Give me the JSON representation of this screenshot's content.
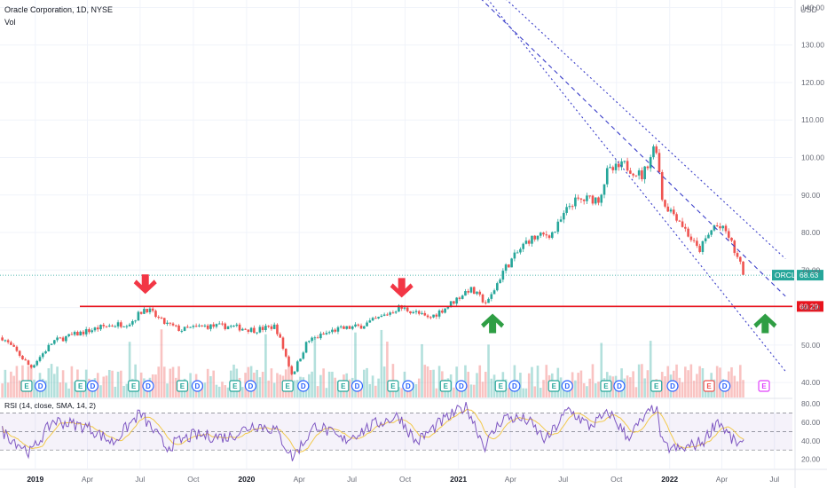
{
  "header": {
    "title": "Oracle Corporation, 1D, NYSE",
    "volume_label": "Vol",
    "currency": "USD"
  },
  "chart_data": {
    "type": "candlestick",
    "symbol": "ORCL",
    "last_price": "68.63",
    "support_price": "60.29",
    "support_level": 60.29,
    "last_level": 68.63,
    "ylim": [
      36,
      142
    ],
    "y_ticks": [
      "40.00",
      "50.00",
      "60.00",
      "70.00",
      "80.00",
      "90.00",
      "100.00",
      "110.00",
      "120.00",
      "130.00",
      "140.00"
    ],
    "y_tick_values": [
      40,
      50,
      60,
      70,
      80,
      90,
      100,
      110,
      120,
      130,
      140
    ],
    "x_ticks": [
      "2019",
      "Apr",
      "Jul",
      "Oct",
      "2020",
      "Apr",
      "Jul",
      "Oct",
      "2021",
      "Apr",
      "Jul",
      "Oct",
      "2022",
      "Apr",
      "Jul"
    ],
    "x_range": [
      "2018-11",
      "2022-08"
    ],
    "price_path": [
      [
        "2018-11-05",
        52
      ],
      [
        "2018-12-01",
        48
      ],
      [
        "2018-12-24",
        44
      ],
      [
        "2019-02-01",
        51
      ],
      [
        "2019-03-15",
        53
      ],
      [
        "2019-05-01",
        55
      ],
      [
        "2019-06-15",
        56
      ],
      [
        "2019-07-10",
        60
      ],
      [
        "2019-08-10",
        56
      ],
      [
        "2019-09-10",
        54
      ],
      [
        "2019-10-15",
        55
      ],
      [
        "2019-12-01",
        55
      ],
      [
        "2020-01-15",
        54
      ],
      [
        "2020-02-20",
        55
      ],
      [
        "2020-03-20",
        42
      ],
      [
        "2020-04-15",
        51
      ],
      [
        "2020-06-01",
        54
      ],
      [
        "2020-07-15",
        55
      ],
      [
        "2020-08-15",
        57
      ],
      [
        "2020-09-20",
        60
      ],
      [
        "2020-10-15",
        59
      ],
      [
        "2020-11-10",
        57
      ],
      [
        "2020-12-10",
        60
      ],
      [
        "2021-01-20",
        65
      ],
      [
        "2021-02-20",
        61
      ],
      [
        "2021-03-20",
        70
      ],
      [
        "2021-05-01",
        78
      ],
      [
        "2021-06-15",
        80
      ],
      [
        "2021-07-15",
        88
      ],
      [
        "2021-08-15",
        89
      ],
      [
        "2021-09-01",
        89
      ],
      [
        "2021-09-15",
        96
      ],
      [
        "2021-10-15",
        98
      ],
      [
        "2021-11-15",
        95
      ],
      [
        "2021-12-08",
        104
      ],
      [
        "2021-12-20",
        88
      ],
      [
        "2022-01-15",
        84
      ],
      [
        "2022-02-20",
        75
      ],
      [
        "2022-03-20",
        82
      ],
      [
        "2022-04-10",
        80
      ],
      [
        "2022-05-01",
        72
      ],
      [
        "2022-05-10",
        68.63
      ]
    ],
    "channel": {
      "upper": [
        [
          "2020-11-20",
          160
        ],
        [
          "2022-07-20",
          73
        ]
      ],
      "middle": [
        [
          "2020-12-20",
          150
        ],
        [
          "2022-07-20",
          63
        ]
      ],
      "lower": [
        [
          "2021-02-01",
          146
        ],
        [
          "2022-07-20",
          43
        ]
      ]
    },
    "annotations": [
      {
        "type": "down-arrow",
        "date": "2019-07-10",
        "price": 66
      },
      {
        "type": "down-arrow",
        "date": "2020-09-25",
        "price": 65
      },
      {
        "type": "up-arrow",
        "date": "2021-03-01",
        "price": 56
      },
      {
        "type": "up-arrow",
        "date": "2022-06-15",
        "price": 56
      }
    ],
    "events": [
      {
        "label": "E",
        "date": "2018-12-17"
      },
      {
        "label": "D",
        "date": "2019-01-10"
      },
      {
        "label": "E",
        "date": "2019-03-20"
      },
      {
        "label": "D",
        "date": "2019-04-10"
      },
      {
        "label": "E",
        "date": "2019-06-20"
      },
      {
        "label": "D",
        "date": "2019-07-15"
      },
      {
        "label": "E",
        "date": "2019-09-12"
      },
      {
        "label": "D",
        "date": "2019-10-08"
      },
      {
        "label": "E",
        "date": "2019-12-12"
      },
      {
        "label": "D",
        "date": "2020-01-08"
      },
      {
        "label": "E",
        "date": "2020-03-12"
      },
      {
        "label": "D",
        "date": "2020-04-08"
      },
      {
        "label": "E",
        "date": "2020-06-16"
      },
      {
        "label": "D",
        "date": "2020-07-10"
      },
      {
        "label": "E",
        "date": "2020-09-10"
      },
      {
        "label": "D",
        "date": "2020-10-06"
      },
      {
        "label": "E",
        "date": "2020-12-10"
      },
      {
        "label": "D",
        "date": "2021-01-06"
      },
      {
        "label": "E",
        "date": "2021-03-15"
      },
      {
        "label": "D",
        "date": "2021-04-08"
      },
      {
        "label": "E",
        "date": "2021-06-15"
      },
      {
        "label": "D",
        "date": "2021-07-08"
      },
      {
        "label": "E",
        "date": "2021-09-13"
      },
      {
        "label": "D",
        "date": "2021-10-06"
      },
      {
        "label": "E",
        "date": "2021-12-09"
      },
      {
        "label": "D",
        "date": "2022-01-06"
      },
      {
        "label": "E",
        "date": "2022-03-10",
        "style": "red"
      },
      {
        "label": "D",
        "date": "2022-04-06"
      },
      {
        "label": "E",
        "date": "2022-06-13",
        "style": "future"
      }
    ],
    "rsi": {
      "label": "RSI (14, close, SMA, 14, 2)",
      "ylim": [
        10,
        85
      ],
      "ticks": [
        "80.00",
        "60.00",
        "40.00",
        "20.00"
      ],
      "tick_values": [
        80,
        60,
        40,
        20
      ],
      "bands": [
        70,
        50,
        30
      ],
      "path": [
        [
          "2018-11-05",
          50
        ],
        [
          "2018-12-24",
          27
        ],
        [
          "2019-02-01",
          62
        ],
        [
          "2019-04-01",
          55
        ],
        [
          "2019-05-15",
          38
        ],
        [
          "2019-07-01",
          70
        ],
        [
          "2019-08-15",
          33
        ],
        [
          "2019-10-01",
          46
        ],
        [
          "2019-12-01",
          44
        ],
        [
          "2020-01-15",
          58
        ],
        [
          "2020-02-20",
          52
        ],
        [
          "2020-03-20",
          22
        ],
        [
          "2020-05-01",
          58
        ],
        [
          "2020-06-15",
          40
        ],
        [
          "2020-08-10",
          58
        ],
        [
          "2020-09-20",
          67
        ],
        [
          "2020-10-20",
          38
        ],
        [
          "2020-12-01",
          60
        ],
        [
          "2021-01-15",
          78
        ],
        [
          "2021-02-15",
          34
        ],
        [
          "2021-03-20",
          66
        ],
        [
          "2021-05-01",
          62
        ],
        [
          "2021-06-01",
          40
        ],
        [
          "2021-07-10",
          74
        ],
        [
          "2021-08-15",
          56
        ],
        [
          "2021-09-20",
          70
        ],
        [
          "2021-10-20",
          44
        ],
        [
          "2021-12-08",
          78
        ],
        [
          "2021-12-20",
          34
        ],
        [
          "2022-01-20",
          30
        ],
        [
          "2022-03-01",
          40
        ],
        [
          "2022-03-25",
          63
        ],
        [
          "2022-04-20",
          40
        ],
        [
          "2022-05-10",
          34
        ]
      ]
    },
    "colors": {
      "up": "#26a69a",
      "down": "#ef5350",
      "support": "#e8141e",
      "channel": "#3a3ec9",
      "rsi": "#7e57c2",
      "rsi_sma": "#f2c94c",
      "dividend": "#2962ff",
      "earnings": "#26a69a",
      "arrow_down": "#f23645",
      "arrow_up": "#2f9e44",
      "last_price_badge": "#26a69a"
    }
  }
}
